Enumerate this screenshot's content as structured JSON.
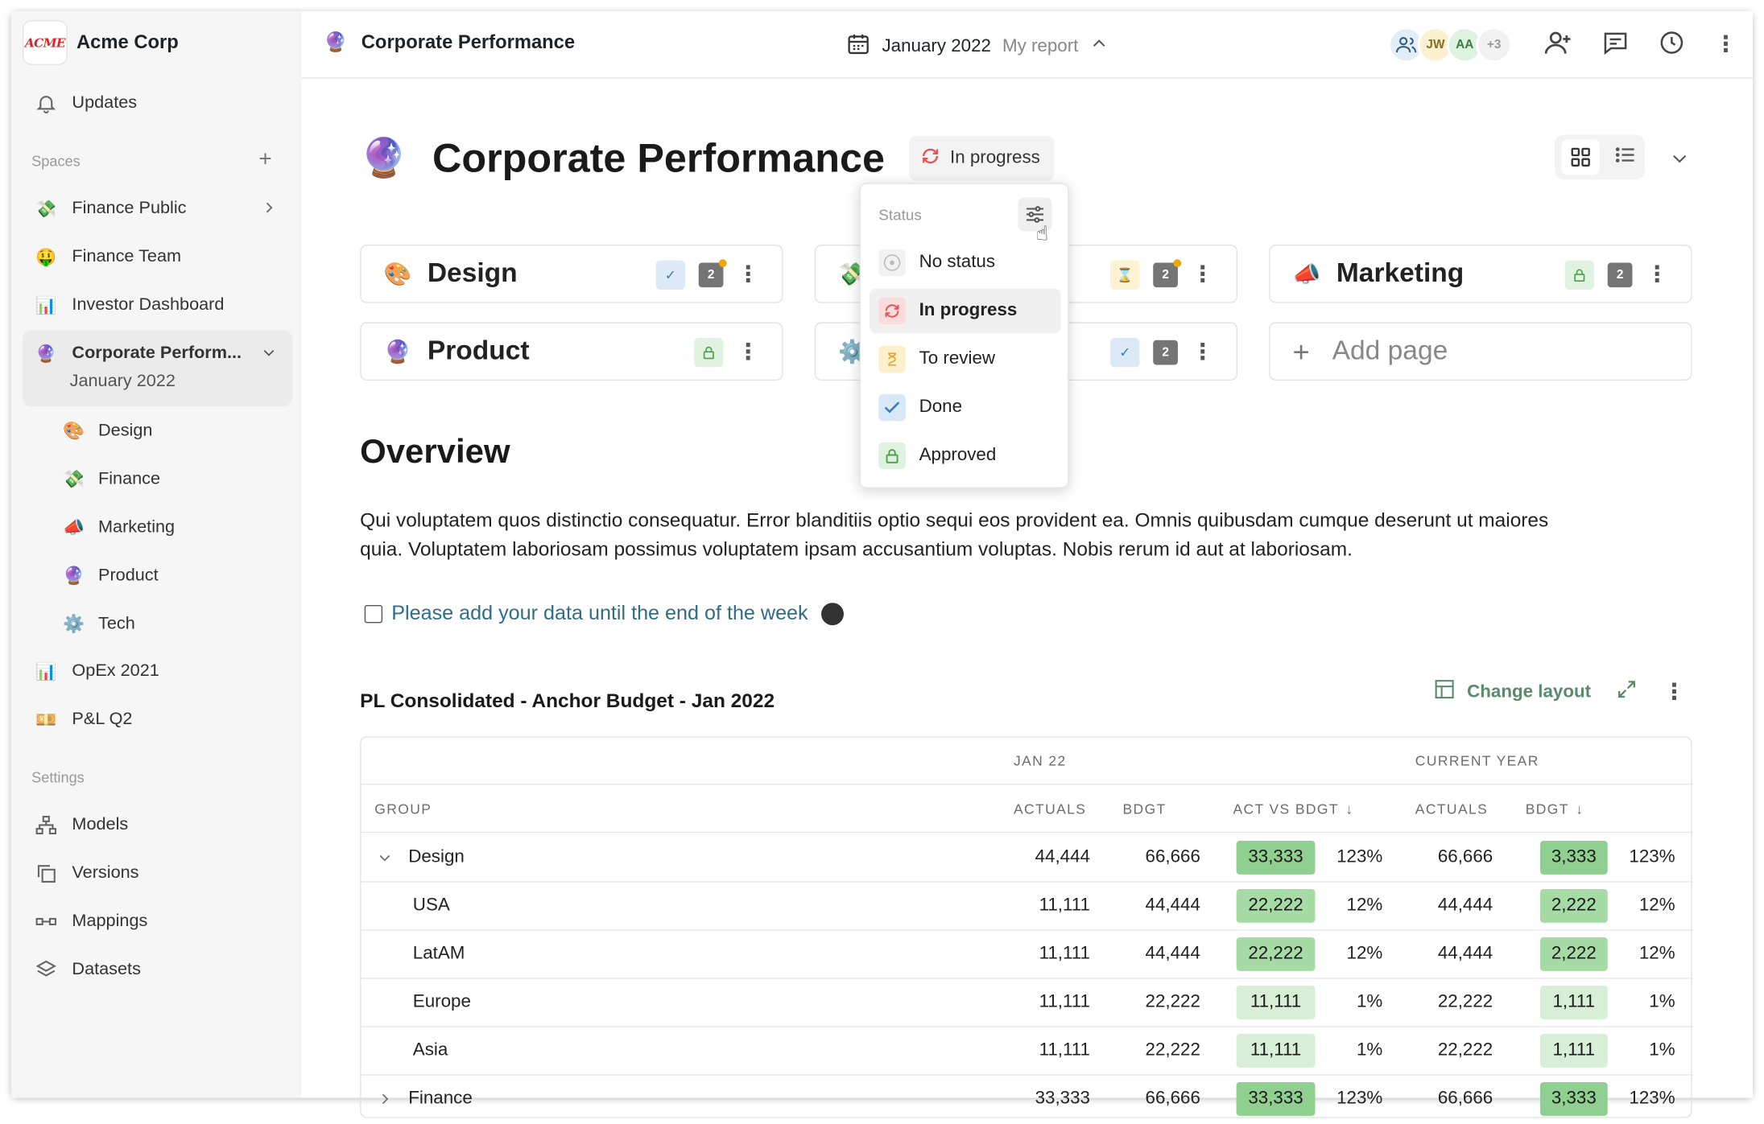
{
  "app": {
    "brand_name": "Acme Corp",
    "brand_logo_text": "ACME"
  },
  "sidebar": {
    "updates_label": "Updates",
    "spaces_label": "Spaces",
    "settings_label": "Settings",
    "spaces": [
      {
        "label": "Finance Public",
        "icon": "money-wings-icon"
      },
      {
        "label": "Finance Team",
        "icon": "money-face-icon"
      },
      {
        "label": "Investor Dashboard",
        "icon": "bar-chart-icon"
      },
      {
        "label": "Corporate Perform...",
        "sublabel": "January 2022",
        "icon": "crystal-ball-icon"
      },
      {
        "label": "OpEx 2021",
        "icon": "bar-chart-icon"
      },
      {
        "label": "P&L Q2",
        "icon": "banknote-icon"
      }
    ],
    "subpages": [
      {
        "label": "Design",
        "icon": "palette-icon"
      },
      {
        "label": "Finance",
        "icon": "money-wings-icon"
      },
      {
        "label": "Marketing",
        "icon": "megaphone-icon"
      },
      {
        "label": "Product",
        "icon": "crystal-ball-icon"
      },
      {
        "label": "Tech",
        "icon": "gear-icon"
      }
    ],
    "settings": [
      {
        "label": "Models",
        "icon": "hierarchy-icon"
      },
      {
        "label": "Versions",
        "icon": "copy-icon"
      },
      {
        "label": "Mappings",
        "icon": "link-icon"
      },
      {
        "label": "Datasets",
        "icon": "layers-icon"
      }
    ]
  },
  "header": {
    "title": "Corporate Performance",
    "period": "January 2022",
    "report": "My report",
    "avatars": [
      "JW",
      "AA",
      "+3"
    ]
  },
  "page": {
    "title": "Corporate Performance",
    "status": "In progress",
    "cards": [
      {
        "label": "Design",
        "icon": "palette-icon",
        "comments": "2"
      },
      {
        "label": "",
        "icon": "money-wings-icon",
        "comments": "2"
      },
      {
        "label": "Marketing",
        "icon": "megaphone-icon",
        "comments": "2"
      },
      {
        "label": "Product",
        "icon": "crystal-ball-icon"
      },
      {
        "label": "",
        "icon": "gear-icon",
        "comments": "2"
      }
    ],
    "add_page_label": "Add page",
    "overview_heading": "Overview",
    "overview_text": "Qui voluptatem quos distinctio consequatur. Error blanditiis optio sequi eos provident ea. Omnis quibusdam cumque deserunt ut maiores quia. Voluptatem laboriosam possimus voluptatem ipsam accusantium voluptas. Nobis rerum id aut at laboriosam.",
    "todo_text": "Please add your data until the end of the week"
  },
  "table": {
    "title": "PL Consolidated - Anchor Budget  - Jan 2022",
    "change_layout_label": "Change layout",
    "group_headers": [
      "JAN 22",
      "CURRENT YEAR"
    ],
    "columns": [
      "GROUP",
      "ACTUALS",
      "BDGT",
      "ACT VS BDGT",
      "ACTUALS",
      "BDGT"
    ],
    "rows": [
      {
        "group": "Design",
        "expand": "open",
        "act": "44,444",
        "bdgt": "66,666",
        "avb": "33,333",
        "avb_pct": "123%",
        "cy_act": "66,666",
        "cy_bdgt": "3,333",
        "cy_pct": "123%",
        "level": "strong"
      },
      {
        "group": "USA",
        "act": "11,111",
        "bdgt": "44,444",
        "avb": "22,222",
        "avb_pct": "12%",
        "cy_act": "44,444",
        "cy_bdgt": "2,222",
        "cy_pct": "12%",
        "level": "medium"
      },
      {
        "group": "LatAM",
        "act": "11,111",
        "bdgt": "44,444",
        "avb": "22,222",
        "avb_pct": "12%",
        "cy_act": "44,444",
        "cy_bdgt": "2,222",
        "cy_pct": "12%",
        "level": "medium"
      },
      {
        "group": "Europe",
        "act": "11,111",
        "bdgt": "22,222",
        "avb": "11,111",
        "avb_pct": "1%",
        "cy_act": "22,222",
        "cy_bdgt": "1,111",
        "cy_pct": "1%",
        "level": "light"
      },
      {
        "group": "Asia",
        "act": "11,111",
        "bdgt": "22,222",
        "avb": "11,111",
        "avb_pct": "1%",
        "cy_act": "22,222",
        "cy_bdgt": "1,111",
        "cy_pct": "1%",
        "level": "light"
      },
      {
        "group": "Finance",
        "expand": "closed",
        "act": "33,333",
        "bdgt": "66,666",
        "avb": "33,333",
        "avb_pct": "123%",
        "cy_act": "66,666",
        "cy_bdgt": "3,333",
        "cy_pct": "123%",
        "level": "strong"
      }
    ]
  },
  "status_menu": {
    "heading": "Status",
    "options": [
      {
        "label": "No status",
        "icon": "empty-circle-icon"
      },
      {
        "label": "In progress",
        "icon": "refresh-icon",
        "selected": true
      },
      {
        "label": "To review",
        "icon": "hourglass-icon"
      },
      {
        "label": "Done",
        "icon": "check-icon"
      },
      {
        "label": "Approved",
        "icon": "lock-icon"
      }
    ]
  },
  "colors": {
    "green_strong": "#8fcf8f",
    "green_medium": "#a6dba6",
    "green_light": "#d6efd6",
    "accent_link": "#2f6d8a",
    "change_layout": "#5a8a6d"
  }
}
